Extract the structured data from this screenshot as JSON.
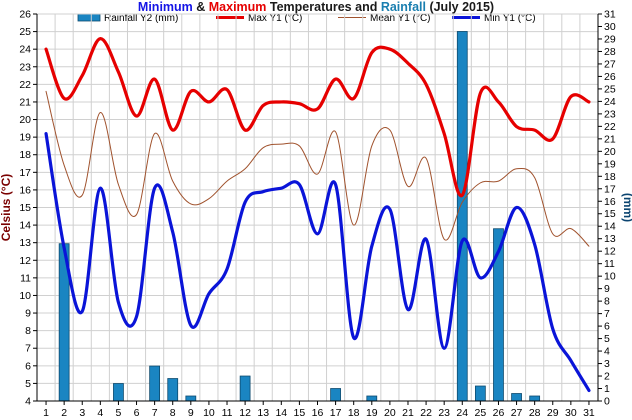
{
  "title": {
    "part1": "Minimum",
    "part2": " & ",
    "part3": "Maximum",
    "part4": " Temperatures and ",
    "part5": "Rainfall",
    "part6": " (July 2015)",
    "color_min": "#1414e6",
    "color_max": "#e60000",
    "color_rain": "#1a7fb0",
    "color_dark": "#1a1a1a"
  },
  "colors": {
    "max": "#e60000",
    "mean": "#a0522d",
    "min": "#0a14d8",
    "rain_fill": "#1a85c2",
    "rain_stroke": "#0d4a6e",
    "left_axis_label": "#7a0000",
    "right_axis_label": "#0b4470",
    "grid": "#d0d0d0"
  },
  "chart_data": {
    "type": "line",
    "x": [
      1,
      2,
      3,
      4,
      5,
      6,
      7,
      8,
      9,
      10,
      11,
      12,
      13,
      14,
      15,
      16,
      17,
      18,
      19,
      20,
      21,
      22,
      23,
      24,
      25,
      26,
      27,
      28,
      29,
      30,
      31
    ],
    "ylabel": "Celsius (°C)",
    "y2label": "(mm)",
    "ylim": [
      4,
      26
    ],
    "y2lim": [
      0,
      31
    ],
    "grid": true,
    "legend_position": "top",
    "series": [
      {
        "name": "Rainfall Y2 (mm)",
        "type": "bar",
        "axis": "y2",
        "values": [
          0,
          12.6,
          0,
          0,
          1.4,
          0,
          2.8,
          1.8,
          0.4,
          0,
          0,
          2.0,
          0,
          0,
          0,
          0,
          1.0,
          0,
          0.4,
          0,
          0,
          0,
          0,
          29.6,
          1.2,
          13.8,
          0.6,
          0.4,
          0,
          0,
          0
        ]
      },
      {
        "name": "Max Y1 (°C)",
        "type": "line",
        "axis": "y1",
        "values": [
          24.0,
          21.2,
          22.5,
          24.6,
          22.7,
          20.2,
          22.3,
          19.4,
          21.6,
          21.0,
          21.7,
          19.4,
          20.8,
          21.0,
          20.9,
          20.6,
          22.3,
          21.2,
          23.8,
          24.0,
          23.2,
          22.0,
          19.2,
          15.7,
          21.5,
          21.0,
          19.6,
          19.4,
          18.9,
          21.3,
          21.0
        ]
      },
      {
        "name": "Mean Y1 (°C)",
        "type": "line",
        "axis": "y1",
        "values": [
          21.6,
          17.4,
          15.7,
          20.4,
          16.3,
          14.6,
          19.2,
          16.5,
          15.2,
          15.5,
          16.5,
          17.2,
          18.4,
          18.6,
          18.5,
          16.9,
          19.3,
          14.0,
          18.5,
          19.4,
          16.2,
          17.8,
          13.2,
          15.3,
          16.4,
          16.5,
          17.2,
          16.7,
          13.5,
          13.8,
          12.8
        ]
      },
      {
        "name": "Min Y1 (°C)",
        "type": "line",
        "axis": "y1",
        "values": [
          19.2,
          12.7,
          9.1,
          16.1,
          9.6,
          8.8,
          16.1,
          13.6,
          8.3,
          10.1,
          11.5,
          15.3,
          15.9,
          16.1,
          16.3,
          13.5,
          16.3,
          7.6,
          12.8,
          14.9,
          9.2,
          13.2,
          7.0,
          13.1,
          11.0,
          12.5,
          15.0,
          12.9,
          8.1,
          6.3,
          4.6
        ]
      }
    ]
  }
}
